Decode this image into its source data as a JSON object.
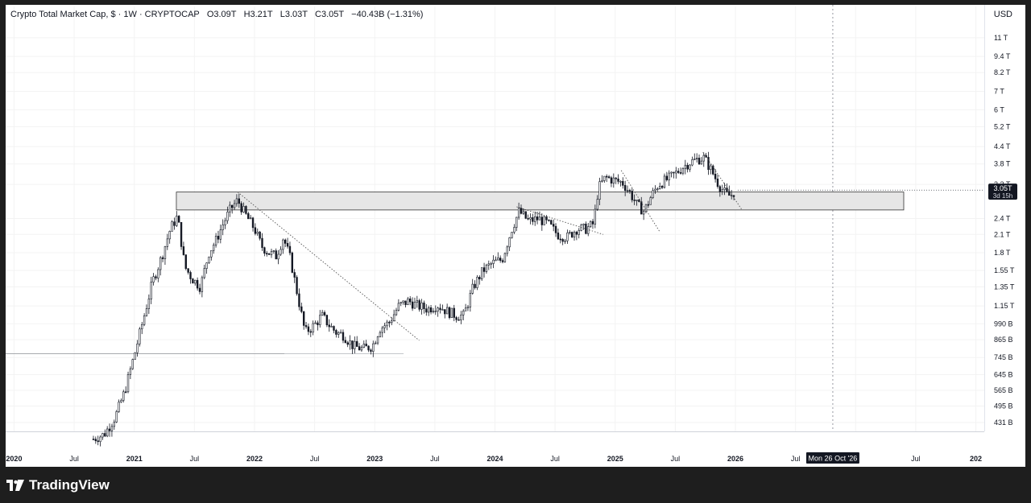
{
  "header": {
    "title": "Crypto Total Market Cap, $ · 1W · CRYPTOCAP",
    "open": "O3.09T",
    "high": "H3.21T",
    "low": "L3.03T",
    "close": "C3.05T",
    "change": "−40.43B (−1.31%)",
    "currency": "USD"
  },
  "current_price": {
    "value": "3.05T",
    "countdown": "3d 15h"
  },
  "crosshair_date": "Mon 26 Oct '26",
  "brand": "TradingView",
  "colors": {
    "up": "#26a69a",
    "candle": "#131722",
    "zone_fill": "#e6e6e6",
    "zone_stroke": "#333333",
    "badge_bg": "#131722"
  },
  "chart_data": {
    "type": "candlestick",
    "scale": "log",
    "price_ticks": [
      {
        "v": 11000,
        "label": "11 T"
      },
      {
        "v": 9400,
        "label": "9.4 T"
      },
      {
        "v": 8200,
        "label": "8.2 T"
      },
      {
        "v": 7000,
        "label": "7 T"
      },
      {
        "v": 6000,
        "label": "6 T"
      },
      {
        "v": 5200,
        "label": "5.2 T"
      },
      {
        "v": 4400,
        "label": "4.4 T"
      },
      {
        "v": 3800,
        "label": "3.8 T"
      },
      {
        "v": 3200,
        "label": "3.2 T"
      },
      {
        "v": 2400,
        "label": "2.4 T"
      },
      {
        "v": 2100,
        "label": "2.1 T"
      },
      {
        "v": 1800,
        "label": "1.8 T"
      },
      {
        "v": 1550,
        "label": "1.55 T"
      },
      {
        "v": 1350,
        "label": "1.35 T"
      },
      {
        "v": 1150,
        "label": "1.15 T"
      },
      {
        "v": 990,
        "label": "990 B"
      },
      {
        "v": 865,
        "label": "865 B"
      },
      {
        "v": 745,
        "label": "745 B"
      },
      {
        "v": 645,
        "label": "645 B"
      },
      {
        "v": 565,
        "label": "565 B"
      },
      {
        "v": 495,
        "label": "495 B"
      },
      {
        "v": 431,
        "label": "431 B"
      }
    ],
    "time_ticks": [
      {
        "t": 2020.0,
        "label": "2020",
        "major": true
      },
      {
        "t": 2020.5,
        "label": "Jul",
        "major": false
      },
      {
        "t": 2021.0,
        "label": "2021",
        "major": true
      },
      {
        "t": 2021.5,
        "label": "Jul",
        "major": false
      },
      {
        "t": 2022.0,
        "label": "2022",
        "major": true
      },
      {
        "t": 2022.5,
        "label": "Jul",
        "major": false
      },
      {
        "t": 2023.0,
        "label": "2023",
        "major": true
      },
      {
        "t": 2023.5,
        "label": "Jul",
        "major": false
      },
      {
        "t": 2024.0,
        "label": "2024",
        "major": true
      },
      {
        "t": 2024.5,
        "label": "Jul",
        "major": false
      },
      {
        "t": 2025.0,
        "label": "2025",
        "major": true
      },
      {
        "t": 2025.5,
        "label": "Jul",
        "major": false
      },
      {
        "t": 2026.0,
        "label": "2026",
        "major": true
      },
      {
        "t": 2026.5,
        "label": "Jul",
        "major": false
      },
      {
        "t": 2027.0,
        "label": "7",
        "major": true
      },
      {
        "t": 2027.5,
        "label": "Jul",
        "major": false
      },
      {
        "t": 2028.0,
        "label": "202",
        "major": true
      }
    ],
    "x_range": [
      2019.93,
      2028.07
    ],
    "y_range": [
      400,
      12500
    ],
    "closes": [
      [
        2020.66,
        375
      ],
      [
        2020.75,
        390
      ],
      [
        2020.84,
        450
      ],
      [
        2020.92,
        560
      ],
      [
        2021.0,
        760
      ],
      [
        2021.08,
        1050
      ],
      [
        2021.15,
        1400
      ],
      [
        2021.23,
        1750
      ],
      [
        2021.3,
        2200
      ],
      [
        2021.36,
        2450
      ],
      [
        2021.42,
        1600
      ],
      [
        2021.48,
        1450
      ],
      [
        2021.55,
        1350
      ],
      [
        2021.62,
        1800
      ],
      [
        2021.68,
        2000
      ],
      [
        2021.74,
        2300
      ],
      [
        2021.8,
        2600
      ],
      [
        2021.86,
        2800
      ],
      [
        2021.92,
        2500
      ],
      [
        2022.0,
        2200
      ],
      [
        2022.06,
        1900
      ],
      [
        2022.12,
        1800
      ],
      [
        2022.18,
        1750
      ],
      [
        2022.24,
        2050
      ],
      [
        2022.3,
        1700
      ],
      [
        2022.36,
        1250
      ],
      [
        2022.42,
        920
      ],
      [
        2022.5,
        980
      ],
      [
        2022.56,
        1060
      ],
      [
        2022.62,
        980
      ],
      [
        2022.68,
        920
      ],
      [
        2022.74,
        900
      ],
      [
        2022.82,
        820
      ],
      [
        2022.9,
        800
      ],
      [
        2022.98,
        820
      ],
      [
        2023.04,
        950
      ],
      [
        2023.12,
        1000
      ],
      [
        2023.2,
        1150
      ],
      [
        2023.28,
        1200
      ],
      [
        2023.36,
        1150
      ],
      [
        2023.44,
        1120
      ],
      [
        2023.52,
        1160
      ],
      [
        2023.6,
        1100
      ],
      [
        2023.68,
        1060
      ],
      [
        2023.74,
        1060
      ],
      [
        2023.82,
        1350
      ],
      [
        2023.9,
        1550
      ],
      [
        2023.98,
        1650
      ],
      [
        2024.06,
        1700
      ],
      [
        2024.14,
        2200
      ],
      [
        2024.2,
        2550
      ],
      [
        2024.28,
        2350
      ],
      [
        2024.36,
        2400
      ],
      [
        2024.44,
        2300
      ],
      [
        2024.52,
        2100
      ],
      [
        2024.6,
        2050
      ],
      [
        2024.68,
        2200
      ],
      [
        2024.76,
        2200
      ],
      [
        2024.82,
        2300
      ],
      [
        2024.86,
        3100
      ],
      [
        2024.92,
        3400
      ],
      [
        2025.0,
        3300
      ],
      [
        2025.06,
        3250
      ],
      [
        2025.12,
        3000
      ],
      [
        2025.18,
        2700
      ],
      [
        2025.24,
        2550
      ],
      [
        2025.3,
        2900
      ],
      [
        2025.36,
        3200
      ],
      [
        2025.44,
        3350
      ],
      [
        2025.5,
        3500
      ],
      [
        2025.56,
        3700
      ],
      [
        2025.62,
        3850
      ],
      [
        2025.68,
        3950
      ],
      [
        2025.74,
        4000
      ],
      [
        2025.8,
        3600
      ],
      [
        2025.86,
        3200
      ],
      [
        2025.92,
        2950
      ],
      [
        2025.96,
        2900
      ],
      [
        2026.0,
        3050
      ]
    ],
    "levels": {
      "zone_top": 3000,
      "zone_bottom": 2580,
      "zone_t_start": 2021.35,
      "zone_t_end": 2027.4,
      "support": 770,
      "support_t_end": 2022.25,
      "support_t_end_2": 2023.24
    },
    "trendlines": [
      {
        "t1": 2021.86,
        "v1": 3000,
        "t2": 2023.37,
        "v2": 860
      },
      {
        "t1": 2024.18,
        "v1": 2650,
        "t2": 2024.9,
        "v2": 2100
      },
      {
        "t1": 2025.05,
        "v1": 3600,
        "t2": 2025.37,
        "v2": 2150
      },
      {
        "t1": 2025.73,
        "v1": 4200,
        "t2": 2026.05,
        "v2": 2600
      }
    ],
    "crosshair_t": 2026.81
  }
}
